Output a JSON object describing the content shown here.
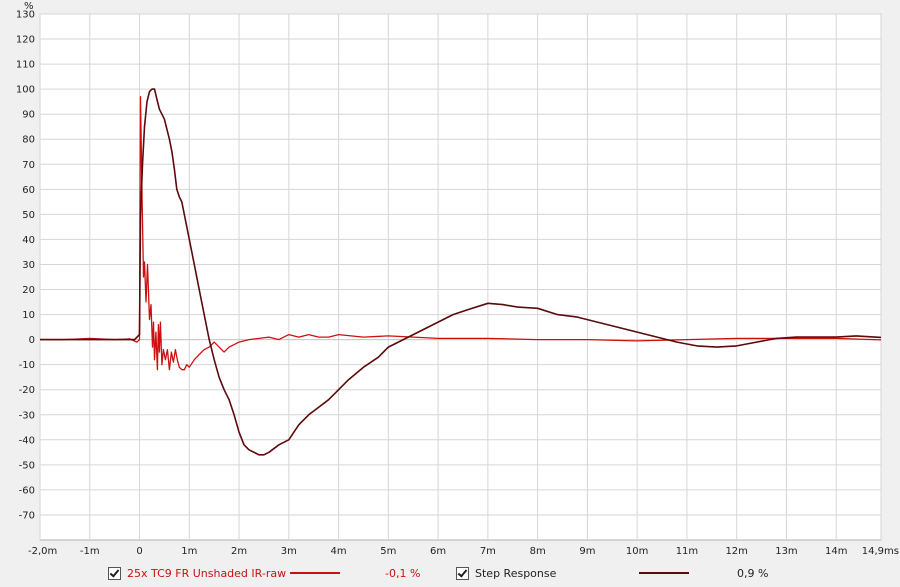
{
  "chart_data": {
    "type": "line",
    "ylabel": "%",
    "ylim": [
      -80,
      130
    ],
    "xlim": [
      -2.0,
      14.9
    ],
    "grid": true,
    "y_ticks": [
      "130",
      "120",
      "110",
      "100",
      "90",
      "80",
      "70",
      "60",
      "50",
      "40",
      "30",
      "20",
      "10",
      "0",
      "-10",
      "-20",
      "-30",
      "-40",
      "-50",
      "-60",
      "-70"
    ],
    "y_tick_values": [
      130,
      120,
      110,
      100,
      90,
      80,
      70,
      60,
      50,
      40,
      30,
      20,
      10,
      0,
      -10,
      -20,
      -30,
      -40,
      -50,
      -60,
      -70
    ],
    "x_ticks": [
      "-2,0m",
      "-1m",
      "0",
      "1m",
      "2m",
      "3m",
      "4m",
      "5m",
      "6m",
      "7m",
      "8m",
      "9m",
      "10m",
      "11m",
      "12m",
      "13m",
      "14m",
      "14,9ms"
    ],
    "x_tick_values": [
      -2,
      -1,
      0,
      1,
      2,
      3,
      4,
      5,
      6,
      7,
      8,
      9,
      10,
      11,
      12,
      13,
      14,
      14.9
    ],
    "series": [
      {
        "name": "25x TC9 FR Unshaded IR-raw",
        "color": "#cc1010",
        "readout": "-0,1 %",
        "points": [
          [
            -2.0,
            0
          ],
          [
            -1.5,
            0
          ],
          [
            -1.0,
            0.5
          ],
          [
            -0.5,
            0
          ],
          [
            -0.2,
            0.3
          ],
          [
            -0.05,
            -1
          ],
          [
            0.0,
            0
          ],
          [
            0.02,
            97
          ],
          [
            0.05,
            58
          ],
          [
            0.08,
            25
          ],
          [
            0.1,
            31
          ],
          [
            0.13,
            15
          ],
          [
            0.16,
            30
          ],
          [
            0.2,
            8
          ],
          [
            0.23,
            14
          ],
          [
            0.26,
            -3
          ],
          [
            0.28,
            7
          ],
          [
            0.3,
            -8
          ],
          [
            0.33,
            3
          ],
          [
            0.36,
            -12
          ],
          [
            0.38,
            6
          ],
          [
            0.4,
            -5
          ],
          [
            0.42,
            7
          ],
          [
            0.45,
            -10
          ],
          [
            0.48,
            -4
          ],
          [
            0.52,
            -8
          ],
          [
            0.56,
            -4
          ],
          [
            0.6,
            -12
          ],
          [
            0.64,
            -5
          ],
          [
            0.68,
            -9
          ],
          [
            0.72,
            -4
          ],
          [
            0.76,
            -8
          ],
          [
            0.8,
            -11
          ],
          [
            0.85,
            -12
          ],
          [
            0.9,
            -12
          ],
          [
            0.95,
            -10
          ],
          [
            1.0,
            -11
          ],
          [
            1.1,
            -8
          ],
          [
            1.2,
            -6
          ],
          [
            1.3,
            -4
          ],
          [
            1.4,
            -3
          ],
          [
            1.5,
            -1
          ],
          [
            1.6,
            -3
          ],
          [
            1.7,
            -5
          ],
          [
            1.8,
            -3
          ],
          [
            1.9,
            -2
          ],
          [
            2.0,
            -1
          ],
          [
            2.2,
            0
          ],
          [
            2.4,
            0.5
          ],
          [
            2.6,
            1
          ],
          [
            2.8,
            0
          ],
          [
            3.0,
            2
          ],
          [
            3.2,
            1
          ],
          [
            3.4,
            2
          ],
          [
            3.6,
            1
          ],
          [
            3.8,
            1
          ],
          [
            4.0,
            2
          ],
          [
            4.5,
            1
          ],
          [
            5.0,
            1.5
          ],
          [
            5.5,
            1
          ],
          [
            6.0,
            0.5
          ],
          [
            7.0,
            0.5
          ],
          [
            8.0,
            0
          ],
          [
            9.0,
            0
          ],
          [
            10.0,
            -0.5
          ],
          [
            11.0,
            0
          ],
          [
            12.0,
            0.5
          ],
          [
            13.0,
            0.5
          ],
          [
            14.0,
            0.5
          ],
          [
            14.9,
            -0.1
          ]
        ]
      },
      {
        "name": "Step Response",
        "color": "#5c0a0a",
        "readout": "0,9 %",
        "points": [
          [
            -2.0,
            0
          ],
          [
            -1.0,
            0
          ],
          [
            -0.1,
            0
          ],
          [
            0.0,
            2
          ],
          [
            0.02,
            50
          ],
          [
            0.06,
            70
          ],
          [
            0.1,
            85
          ],
          [
            0.15,
            95
          ],
          [
            0.2,
            99
          ],
          [
            0.25,
            100
          ],
          [
            0.3,
            100
          ],
          [
            0.35,
            96
          ],
          [
            0.4,
            92
          ],
          [
            0.45,
            90
          ],
          [
            0.5,
            88
          ],
          [
            0.55,
            84
          ],
          [
            0.6,
            80
          ],
          [
            0.65,
            75
          ],
          [
            0.7,
            68
          ],
          [
            0.75,
            60
          ],
          [
            0.8,
            57
          ],
          [
            0.85,
            55
          ],
          [
            0.9,
            50
          ],
          [
            1.0,
            40
          ],
          [
            1.1,
            30
          ],
          [
            1.2,
            20
          ],
          [
            1.3,
            10
          ],
          [
            1.4,
            0
          ],
          [
            1.5,
            -8
          ],
          [
            1.6,
            -15
          ],
          [
            1.7,
            -20
          ],
          [
            1.8,
            -24
          ],
          [
            1.9,
            -30
          ],
          [
            2.0,
            -37
          ],
          [
            2.1,
            -42
          ],
          [
            2.2,
            -44
          ],
          [
            2.4,
            -46
          ],
          [
            2.5,
            -46
          ],
          [
            2.6,
            -45
          ],
          [
            2.8,
            -42
          ],
          [
            3.0,
            -40
          ],
          [
            3.2,
            -34
          ],
          [
            3.4,
            -30
          ],
          [
            3.6,
            -27
          ],
          [
            3.8,
            -24
          ],
          [
            4.0,
            -20
          ],
          [
            4.2,
            -16
          ],
          [
            4.5,
            -11
          ],
          [
            4.8,
            -7
          ],
          [
            5.0,
            -3
          ],
          [
            5.3,
            0
          ],
          [
            5.6,
            3
          ],
          [
            6.0,
            7
          ],
          [
            6.3,
            10
          ],
          [
            6.6,
            12
          ],
          [
            7.0,
            14.5
          ],
          [
            7.3,
            14
          ],
          [
            7.6,
            13
          ],
          [
            8.0,
            12.5
          ],
          [
            8.4,
            10
          ],
          [
            8.8,
            9
          ],
          [
            9.2,
            7
          ],
          [
            9.6,
            5
          ],
          [
            10.0,
            3
          ],
          [
            10.4,
            1
          ],
          [
            10.8,
            -1
          ],
          [
            11.2,
            -2.5
          ],
          [
            11.6,
            -3
          ],
          [
            12.0,
            -2.5
          ],
          [
            12.4,
            -1
          ],
          [
            12.8,
            0.5
          ],
          [
            13.2,
            1
          ],
          [
            13.6,
            1
          ],
          [
            14.0,
            1
          ],
          [
            14.4,
            1.5
          ],
          [
            14.9,
            0.9
          ]
        ]
      }
    ]
  }
}
